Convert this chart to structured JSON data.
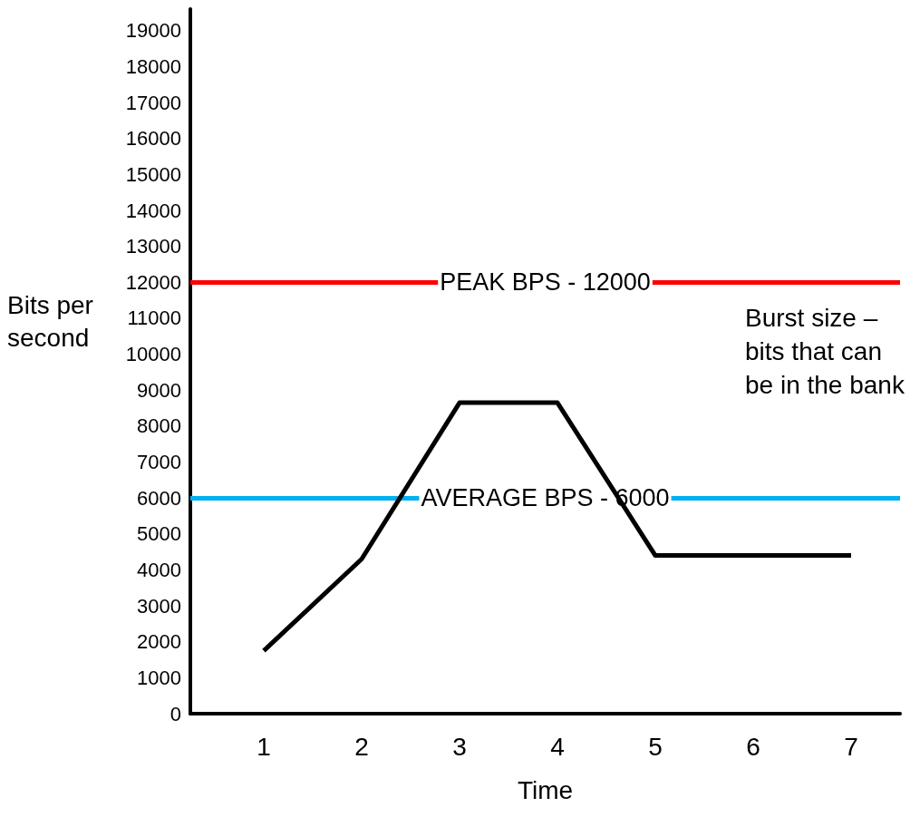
{
  "chart_data": {
    "type": "line",
    "xlabel": "Time",
    "ylabel": "Bits per second",
    "x": [
      1,
      2,
      3,
      4,
      5,
      7
    ],
    "series": [
      {
        "color": "#000000",
        "values": [
          1750,
          4300,
          8650,
          8650,
          4400,
          4400
        ]
      }
    ],
    "xlim": [
      0.25,
      7.5
    ],
    "xticks": [
      1,
      2,
      3,
      4,
      5,
      6,
      7
    ],
    "ylim": [
      0,
      19600
    ],
    "yticks": [
      0,
      1000,
      2000,
      3000,
      4000,
      5000,
      6000,
      7000,
      8000,
      9000,
      10000,
      11000,
      12000,
      13000,
      14000,
      15000,
      16000,
      17000,
      18000,
      19000
    ],
    "ref_lines": [
      {
        "axis": "y",
        "value": 12000,
        "label": "PEAK BPS - 12000",
        "color": "#ff0000",
        "line_style": "solid"
      },
      {
        "axis": "y",
        "value": 6000,
        "label": "AVERAGE BPS - 6000",
        "color": "#00b0f0",
        "line_style": "solid"
      }
    ],
    "annotations": [
      "Burst size – bits that can be in the bank"
    ],
    "grid": false,
    "marker": "none",
    "line_style": "solid"
  }
}
